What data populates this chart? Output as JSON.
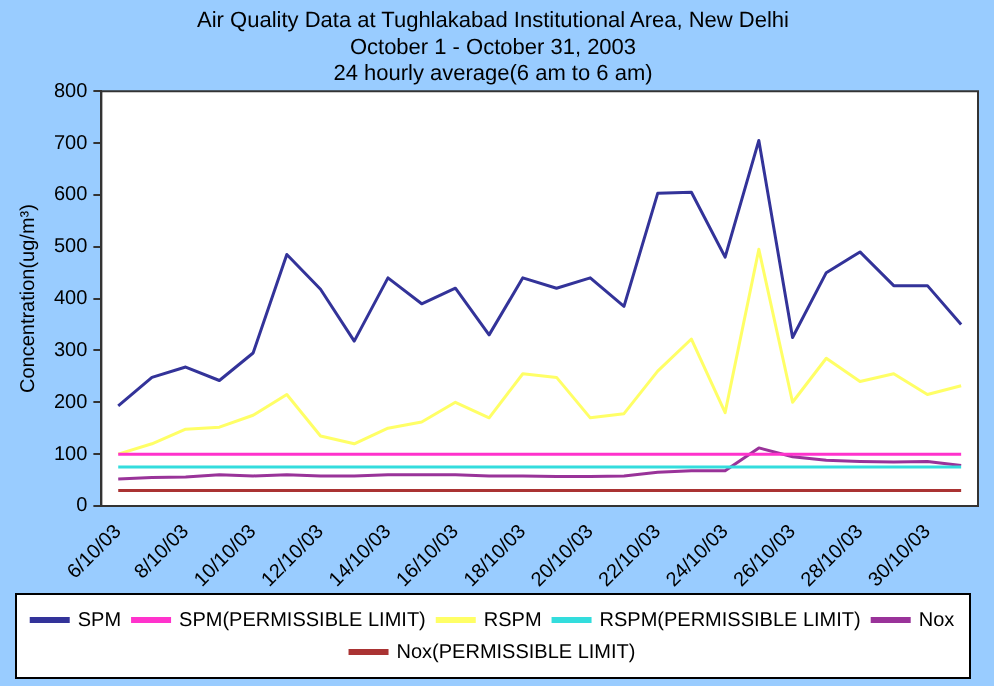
{
  "chart_data": {
    "type": "line",
    "title": "Air Quality Data at Tughlakabad Institutional Area, New Delhi",
    "subtitle": "October 1 - October 31, 2003",
    "annotations": [
      "24 hourly average(6 am to 6 am)"
    ],
    "ylabel": "Concentration(ug/m³)",
    "categories": [
      "6/10/03",
      null,
      "8/10/03",
      null,
      "10/10/03",
      null,
      "12/10/03",
      null,
      "14/10/03",
      null,
      "16/10/03",
      null,
      "18/10/03",
      null,
      "20/10/03",
      null,
      "22/10/03",
      null,
      "24/10/03",
      null,
      "26/10/03",
      null,
      "28/10/03",
      null,
      "30/10/03",
      null
    ],
    "series": [
      {
        "name": "SPM",
        "color": "#333399",
        "values": [
          193,
          248,
          268,
          242,
          295,
          485,
          418,
          318,
          440,
          390,
          420,
          330,
          440,
          420,
          440,
          385,
          603,
          605,
          480,
          705,
          325,
          450,
          490,
          425,
          425,
          350
        ]
      },
      {
        "name": "SPM(PERMISSIBLE LIMIT)",
        "color": "#ff33cc",
        "values": [
          100,
          100,
          100,
          100,
          100,
          100,
          100,
          100,
          100,
          100,
          100,
          100,
          100,
          100,
          100,
          100,
          100,
          100,
          100,
          100,
          100,
          100,
          100,
          100,
          100,
          100
        ]
      },
      {
        "name": "RSPM",
        "color": "#ffff66",
        "values": [
          100,
          120,
          148,
          152,
          175,
          215,
          135,
          120,
          150,
          162,
          200,
          170,
          255,
          248,
          170,
          178,
          260,
          322,
          180,
          495,
          200,
          285,
          240,
          255,
          215,
          232
        ]
      },
      {
        "name": "RSPM(PERMISSIBLE LIMIT)",
        "color": "#33dddd",
        "values": [
          75,
          75,
          75,
          75,
          75,
          75,
          75,
          75,
          75,
          75,
          75,
          75,
          75,
          75,
          75,
          75,
          75,
          75,
          75,
          75,
          75,
          75,
          75,
          75,
          75,
          75
        ]
      },
      {
        "name": "Nox",
        "color": "#993399",
        "values": [
          52,
          55,
          56,
          60,
          58,
          60,
          58,
          58,
          60,
          60,
          60,
          58,
          58,
          57,
          57,
          58,
          65,
          68,
          68,
          112,
          95,
          88,
          86,
          85,
          86,
          78
        ]
      },
      {
        "name": "Nox(PERMISSIBLE LIMIT)",
        "color": "#aa3333",
        "values": [
          30,
          30,
          30,
          30,
          30,
          30,
          30,
          30,
          30,
          30,
          30,
          30,
          30,
          30,
          30,
          30,
          30,
          30,
          30,
          30,
          30,
          30,
          30,
          30,
          30,
          30
        ]
      }
    ],
    "ylim": [
      0,
      800
    ],
    "yticks": [
      0,
      100,
      200,
      300,
      400,
      500,
      600,
      700,
      800
    ],
    "grid": false,
    "legend": "bottom",
    "marker": "none",
    "line_style": "solid"
  }
}
